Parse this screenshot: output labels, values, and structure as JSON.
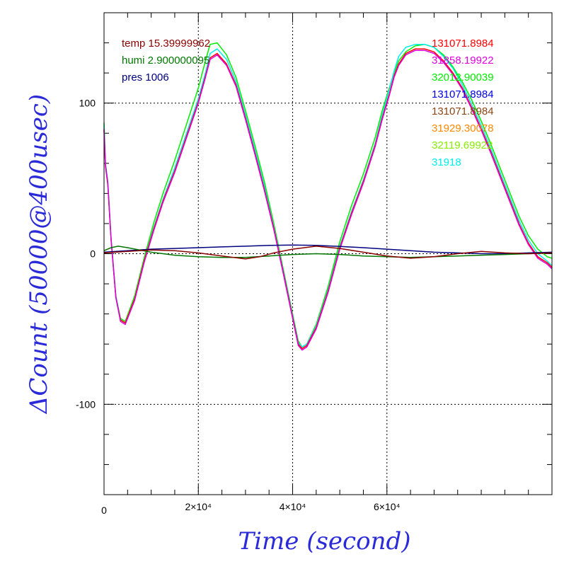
{
  "chart_data": {
    "type": "line",
    "xlabel": "Time (second)",
    "ylabel": "ΔCount (50000@400usec)",
    "xlim": [
      0,
      95000
    ],
    "ylim": [
      -160,
      160
    ],
    "x_ticks": [
      {
        "value": 0,
        "label": "0"
      },
      {
        "value": 20000,
        "label": "2×10⁴"
      },
      {
        "value": 40000,
        "label": "4×10⁴"
      },
      {
        "value": 60000,
        "label": "6×10⁴"
      }
    ],
    "y_ticks": [
      {
        "value": 100,
        "label": "100"
      },
      {
        "value": 0,
        "label": "0"
      },
      {
        "value": -100,
        "label": "-100"
      }
    ],
    "x_minor_step": 5000,
    "y_minor_step": 20,
    "grid": true,
    "legend_left": [
      {
        "text": "temp 15.39999962",
        "color": "#8b0000"
      },
      {
        "text": "humi 2.900000095",
        "color": "#007700"
      },
      {
        "text": "pres 1006",
        "color": "#000080"
      }
    ],
    "legend_right": [
      {
        "text": "131071.8984",
        "color": "#ff0000"
      },
      {
        "text": "31858.19922",
        "color": "#dd00dd"
      },
      {
        "text": "32012.90039",
        "color": "#00ee00"
      },
      {
        "text": "131071.8984",
        "color": "#0000dd"
      },
      {
        "text": "131071.8984",
        "color": "#8b4513"
      },
      {
        "text": "31929.30078",
        "color": "#ff8800"
      },
      {
        "text": "32119.69922",
        "color": "#88ee00"
      },
      {
        "text": "31918",
        "color": "#00eeee"
      }
    ],
    "series": [
      {
        "color": "#00ee00",
        "x": [
          0,
          300,
          800,
          1500,
          2500,
          3500,
          4500,
          6500,
          8500,
          10500,
          12500,
          15000,
          17500,
          20000,
          21500,
          22500,
          24000,
          26000,
          28000,
          30000,
          32000,
          34000,
          36000,
          38000,
          40000,
          41200,
          42000,
          43000,
          45000,
          47500,
          50000,
          52500,
          55000,
          57500,
          59000,
          60500,
          61500,
          62500,
          64000,
          66000,
          68000,
          70000,
          72000,
          74000,
          76000,
          78000,
          80000,
          82000,
          84000,
          86000,
          88000,
          90000,
          92000,
          94000,
          95000
        ],
        "y": [
          87,
          60,
          48,
          10,
          -28,
          -43,
          -45,
          -28,
          -3,
          20,
          40,
          62,
          86,
          110,
          128,
          139,
          140,
          132,
          117,
          95,
          72,
          48,
          20,
          -10,
          -40,
          -58,
          -62,
          -60,
          -47,
          -22,
          8,
          32,
          53,
          77,
          95,
          110,
          120,
          128,
          134,
          138,
          139,
          137,
          132,
          124,
          114,
          102,
          88,
          73,
          57,
          41,
          25,
          12,
          3,
          -2,
          -3
        ]
      },
      {
        "color": "#00eeee",
        "x": [
          0,
          300,
          800,
          1500,
          2500,
          3500,
          4500,
          6500,
          8500,
          10500,
          12500,
          15000,
          17500,
          20000,
          21500,
          22500,
          24000,
          26000,
          28000,
          30000,
          32000,
          34000,
          36000,
          38000,
          40000,
          41200,
          42000,
          43000,
          45000,
          47500,
          50000,
          52500,
          55000,
          57500,
          59000,
          60500,
          61500,
          62500,
          64000,
          66000,
          68000,
          70000,
          72000,
          74000,
          76000,
          78000,
          80000,
          82000,
          84000,
          86000,
          88000,
          90000,
          92000,
          94000,
          95000
        ],
        "y": [
          85,
          60,
          48,
          10,
          -28,
          -44,
          -46,
          -30,
          -5,
          17,
          36,
          57,
          80,
          103,
          120,
          133,
          136,
          129,
          114,
          92,
          69,
          45,
          18,
          -11,
          -41,
          -59,
          -62,
          -60,
          -48,
          -24,
          5,
          28,
          49,
          73,
          92,
          109,
          121,
          131,
          137,
          139,
          139,
          137,
          131,
          123,
          112,
          99,
          85,
          70,
          54,
          38,
          22,
          9,
          0,
          -5,
          -8
        ]
      },
      {
        "color": "#ff0000",
        "x": [
          0,
          300,
          800,
          1500,
          2500,
          3500,
          4500,
          6500,
          8500,
          10500,
          12500,
          15000,
          17500,
          20000,
          21500,
          22500,
          24000,
          26000,
          28000,
          30000,
          32000,
          34000,
          36000,
          38000,
          40000,
          41200,
          42000,
          43000,
          45000,
          47500,
          50000,
          52500,
          55000,
          57500,
          59000,
          60500,
          61500,
          62500,
          64000,
          66000,
          68000,
          70000,
          72000,
          74000,
          76000,
          78000,
          80000,
          82000,
          84000,
          86000,
          88000,
          90000,
          92000,
          94000,
          95000
        ],
        "y": [
          82,
          58,
          46,
          9,
          -29,
          -44,
          -46,
          -30,
          -5,
          16,
          35,
          55,
          78,
          101,
          118,
          130,
          133,
          126,
          112,
          90,
          67,
          43,
          17,
          -12,
          -42,
          -60,
          -63,
          -61,
          -49,
          -25,
          4,
          27,
          48,
          72,
          90,
          106,
          118,
          126,
          133,
          136,
          136,
          134,
          128,
          120,
          110,
          97,
          83,
          68,
          52,
          36,
          20,
          7,
          -2,
          -6,
          -9
        ]
      },
      {
        "color": "#dd00dd",
        "x": [
          0,
          300,
          800,
          1500,
          2500,
          3500,
          4500,
          6500,
          8500,
          10500,
          12500,
          15000,
          17500,
          20000,
          21500,
          22500,
          24000,
          26000,
          28000,
          30000,
          32000,
          34000,
          36000,
          38000,
          40000,
          41200,
          42000,
          43000,
          45000,
          47500,
          50000,
          52500,
          55000,
          57500,
          59000,
          60500,
          61500,
          62500,
          64000,
          66000,
          68000,
          70000,
          72000,
          74000,
          76000,
          78000,
          80000,
          82000,
          84000,
          86000,
          88000,
          90000,
          92000,
          94000,
          95000
        ],
        "y": [
          83,
          59,
          47,
          9,
          -29,
          -45,
          -47,
          -31,
          -6,
          15,
          34,
          54,
          77,
          100,
          117,
          129,
          132,
          125,
          111,
          89,
          66,
          42,
          16,
          -13,
          -43,
          -61,
          -64,
          -62,
          -50,
          -26,
          3,
          26,
          47,
          71,
          89,
          105,
          117,
          125,
          132,
          135,
          135,
          133,
          127,
          119,
          109,
          96,
          82,
          67,
          51,
          35,
          19,
          6,
          -3,
          -7,
          -10
        ]
      },
      {
        "color": "#000080",
        "x": [
          0,
          5000,
          10000,
          15000,
          20000,
          25000,
          30000,
          35000,
          40000,
          45000,
          50000,
          55000,
          60000,
          65000,
          70000,
          75000,
          80000,
          85000,
          90000,
          95000
        ],
        "y": [
          1,
          2,
          3,
          3.5,
          4,
          4.5,
          5,
          5.5,
          5.8,
          5.5,
          4.8,
          4,
          3,
          2,
          1,
          0.5,
          0,
          0,
          0.5,
          1
        ]
      },
      {
        "color": "#007700",
        "x": [
          0,
          1500,
          3000,
          5000,
          10000,
          15000,
          20000,
          25000,
          30000,
          35000,
          40000,
          45000,
          50000,
          55000,
          60000,
          65000,
          70000,
          75000,
          80000,
          85000,
          90000,
          95000
        ],
        "y": [
          2,
          4,
          5,
          4,
          1,
          -1,
          -2,
          -2.5,
          -2.5,
          -1.5,
          -0.5,
          0,
          -0.5,
          -1.5,
          -2,
          -2.5,
          -2,
          -1.5,
          -1,
          -0.5,
          0,
          0.5
        ]
      },
      {
        "color": "#8b0000",
        "x": [
          0,
          5000,
          10000,
          15000,
          20000,
          25000,
          30000,
          33000,
          36000,
          40000,
          45000,
          50000,
          55000,
          60000,
          65000,
          70000,
          75000,
          80000,
          85000,
          90000,
          95000
        ],
        "y": [
          0.5,
          1.5,
          2.5,
          2,
          0.5,
          -1.5,
          -3.5,
          -2,
          0.5,
          3,
          5,
          3.5,
          1,
          -1.5,
          -3,
          -2,
          0,
          1.5,
          0.5,
          0,
          0.5
        ]
      }
    ]
  }
}
